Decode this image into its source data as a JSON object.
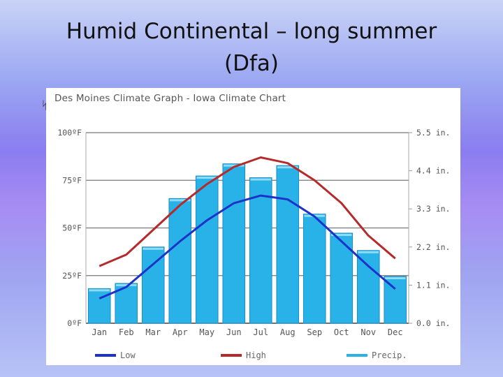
{
  "slide": {
    "title_line1": "Humid Continental – long summer",
    "title_line2": "(Dfa)",
    "stray_mark": "ᛋ"
  },
  "chart_data": {
    "type": "bar",
    "title": "Des Moines Climate Graph - Iowa Climate Chart",
    "categories": [
      "Jan",
      "Feb",
      "Mar",
      "Apr",
      "May",
      "Jun",
      "Jul",
      "Aug",
      "Sep",
      "Oct",
      "Nov",
      "Dec"
    ],
    "left_axis": {
      "unit": "°F",
      "ylim": [
        0,
        100
      ],
      "ticks": [
        "0ºF",
        "25ºF",
        "50ºF",
        "75ºF",
        "100ºF"
      ]
    },
    "right_axis": {
      "unit": "in.",
      "ylim": [
        0,
        5.5
      ],
      "ticks": [
        "0.0 in.",
        "1.1 in.",
        "2.2 in.",
        "3.3 in.",
        "4.4 in.",
        "5.5 in."
      ]
    },
    "series": [
      {
        "name": "Precip.",
        "kind": "bar",
        "axis": "right",
        "color": "#29b2e8",
        "values": [
          1.0,
          1.15,
          2.2,
          3.6,
          4.25,
          4.6,
          4.2,
          4.55,
          3.15,
          2.6,
          2.1,
          1.35
        ]
      },
      {
        "name": "High",
        "kind": "line",
        "axis": "left",
        "color": "#b52a2a",
        "values": [
          30,
          36,
          49,
          62,
          73,
          82,
          87,
          84,
          75,
          63,
          46,
          34
        ]
      },
      {
        "name": "Low",
        "kind": "line",
        "axis": "left",
        "color": "#1b33c9",
        "values": [
          13,
          19,
          31,
          43,
          54,
          63,
          67,
          65,
          56,
          43,
          30,
          18
        ]
      }
    ],
    "legend": [
      {
        "label": "Low",
        "color": "#1b33c9"
      },
      {
        "label": "High",
        "color": "#b52a2a"
      },
      {
        "label": "Precip.",
        "color": "#29b2e8"
      }
    ],
    "grid": true,
    "legend_position": "bottom"
  }
}
